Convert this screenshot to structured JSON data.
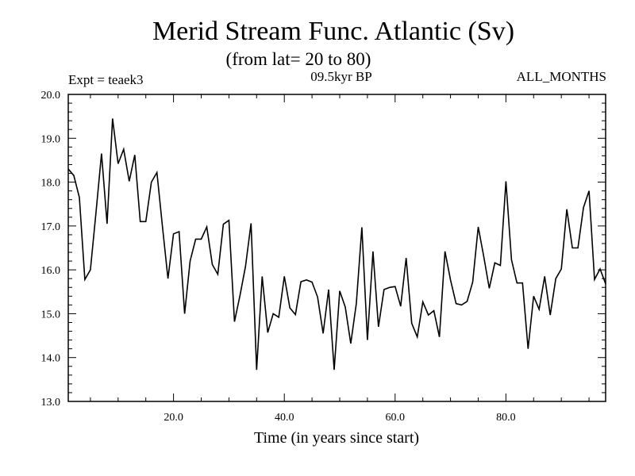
{
  "chart_data": {
    "type": "line",
    "title": "Merid Stream Func. Atlantic (Sv)",
    "subtitle": "(from lat= 20 to 80)",
    "experiment": "Expt = teaek3",
    "period": "09.5kyr BP",
    "months": "ALL_MONTHS",
    "xlabel": "Time (in years since start)",
    "ylabel": "",
    "xlim": [
      1,
      98
    ],
    "ylim": [
      13.0,
      20.0
    ],
    "xticks": [
      20,
      40,
      60,
      80
    ],
    "xtick_labels": [
      "20.0",
      "40.0",
      "60.0",
      "80.0"
    ],
    "yticks": [
      13,
      14,
      15,
      16,
      17,
      18,
      19,
      20
    ],
    "ytick_labels": [
      "13.0",
      "14.0",
      "15.0",
      "16.0",
      "17.0",
      "18.0",
      "19.0",
      "20.0"
    ],
    "grid": false,
    "series": [
      {
        "name": "Merid Stream Func.",
        "color": "#000000",
        "x": [
          1,
          2,
          3,
          4,
          5,
          6,
          7,
          8,
          9,
          10,
          11,
          12,
          13,
          14,
          15,
          16,
          17,
          18,
          19,
          20,
          21,
          22,
          23,
          24,
          25,
          26,
          27,
          28,
          29,
          30,
          31,
          32,
          33,
          34,
          35,
          36,
          37,
          38,
          39,
          40,
          41,
          42,
          43,
          44,
          45,
          46,
          47,
          48,
          49,
          50,
          51,
          52,
          53,
          54,
          55,
          56,
          57,
          58,
          59,
          60,
          61,
          62,
          63,
          64,
          65,
          66,
          67,
          68,
          69,
          70,
          71,
          72,
          73,
          74,
          75,
          76,
          77,
          78,
          79,
          80,
          81,
          82,
          83,
          84,
          85,
          86,
          87,
          88,
          89,
          90,
          91,
          92,
          93,
          94,
          95,
          96,
          97,
          98
        ],
        "values": [
          18.3,
          18.15,
          17.65,
          15.78,
          16.0,
          17.3,
          18.65,
          17.05,
          19.45,
          18.42,
          18.75,
          18.02,
          18.62,
          17.1,
          17.1,
          18.0,
          18.22,
          17.0,
          15.8,
          16.82,
          16.87,
          15.0,
          16.2,
          16.7,
          16.7,
          16.98,
          16.12,
          15.9,
          17.04,
          17.13,
          14.82,
          15.42,
          16.08,
          17.06,
          13.72,
          15.85,
          14.57,
          15.0,
          14.92,
          15.85,
          15.13,
          14.98,
          15.73,
          15.77,
          15.72,
          15.38,
          14.55,
          15.55,
          13.72,
          15.52,
          15.15,
          14.32,
          15.23,
          16.97,
          14.4,
          16.42,
          14.7,
          15.55,
          15.6,
          15.62,
          15.17,
          16.27,
          14.78,
          14.47,
          15.27,
          14.97,
          15.07,
          14.47,
          16.42,
          15.77,
          15.23,
          15.2,
          15.28,
          15.72,
          16.98,
          16.3,
          15.58,
          16.16,
          16.1,
          18.02,
          16.23,
          15.7,
          15.7,
          14.2,
          15.4,
          15.1,
          15.85,
          14.97,
          15.8,
          16.02,
          17.38,
          16.5,
          16.5,
          17.42,
          17.8,
          15.78,
          16.02,
          15.68
        ]
      }
    ]
  }
}
